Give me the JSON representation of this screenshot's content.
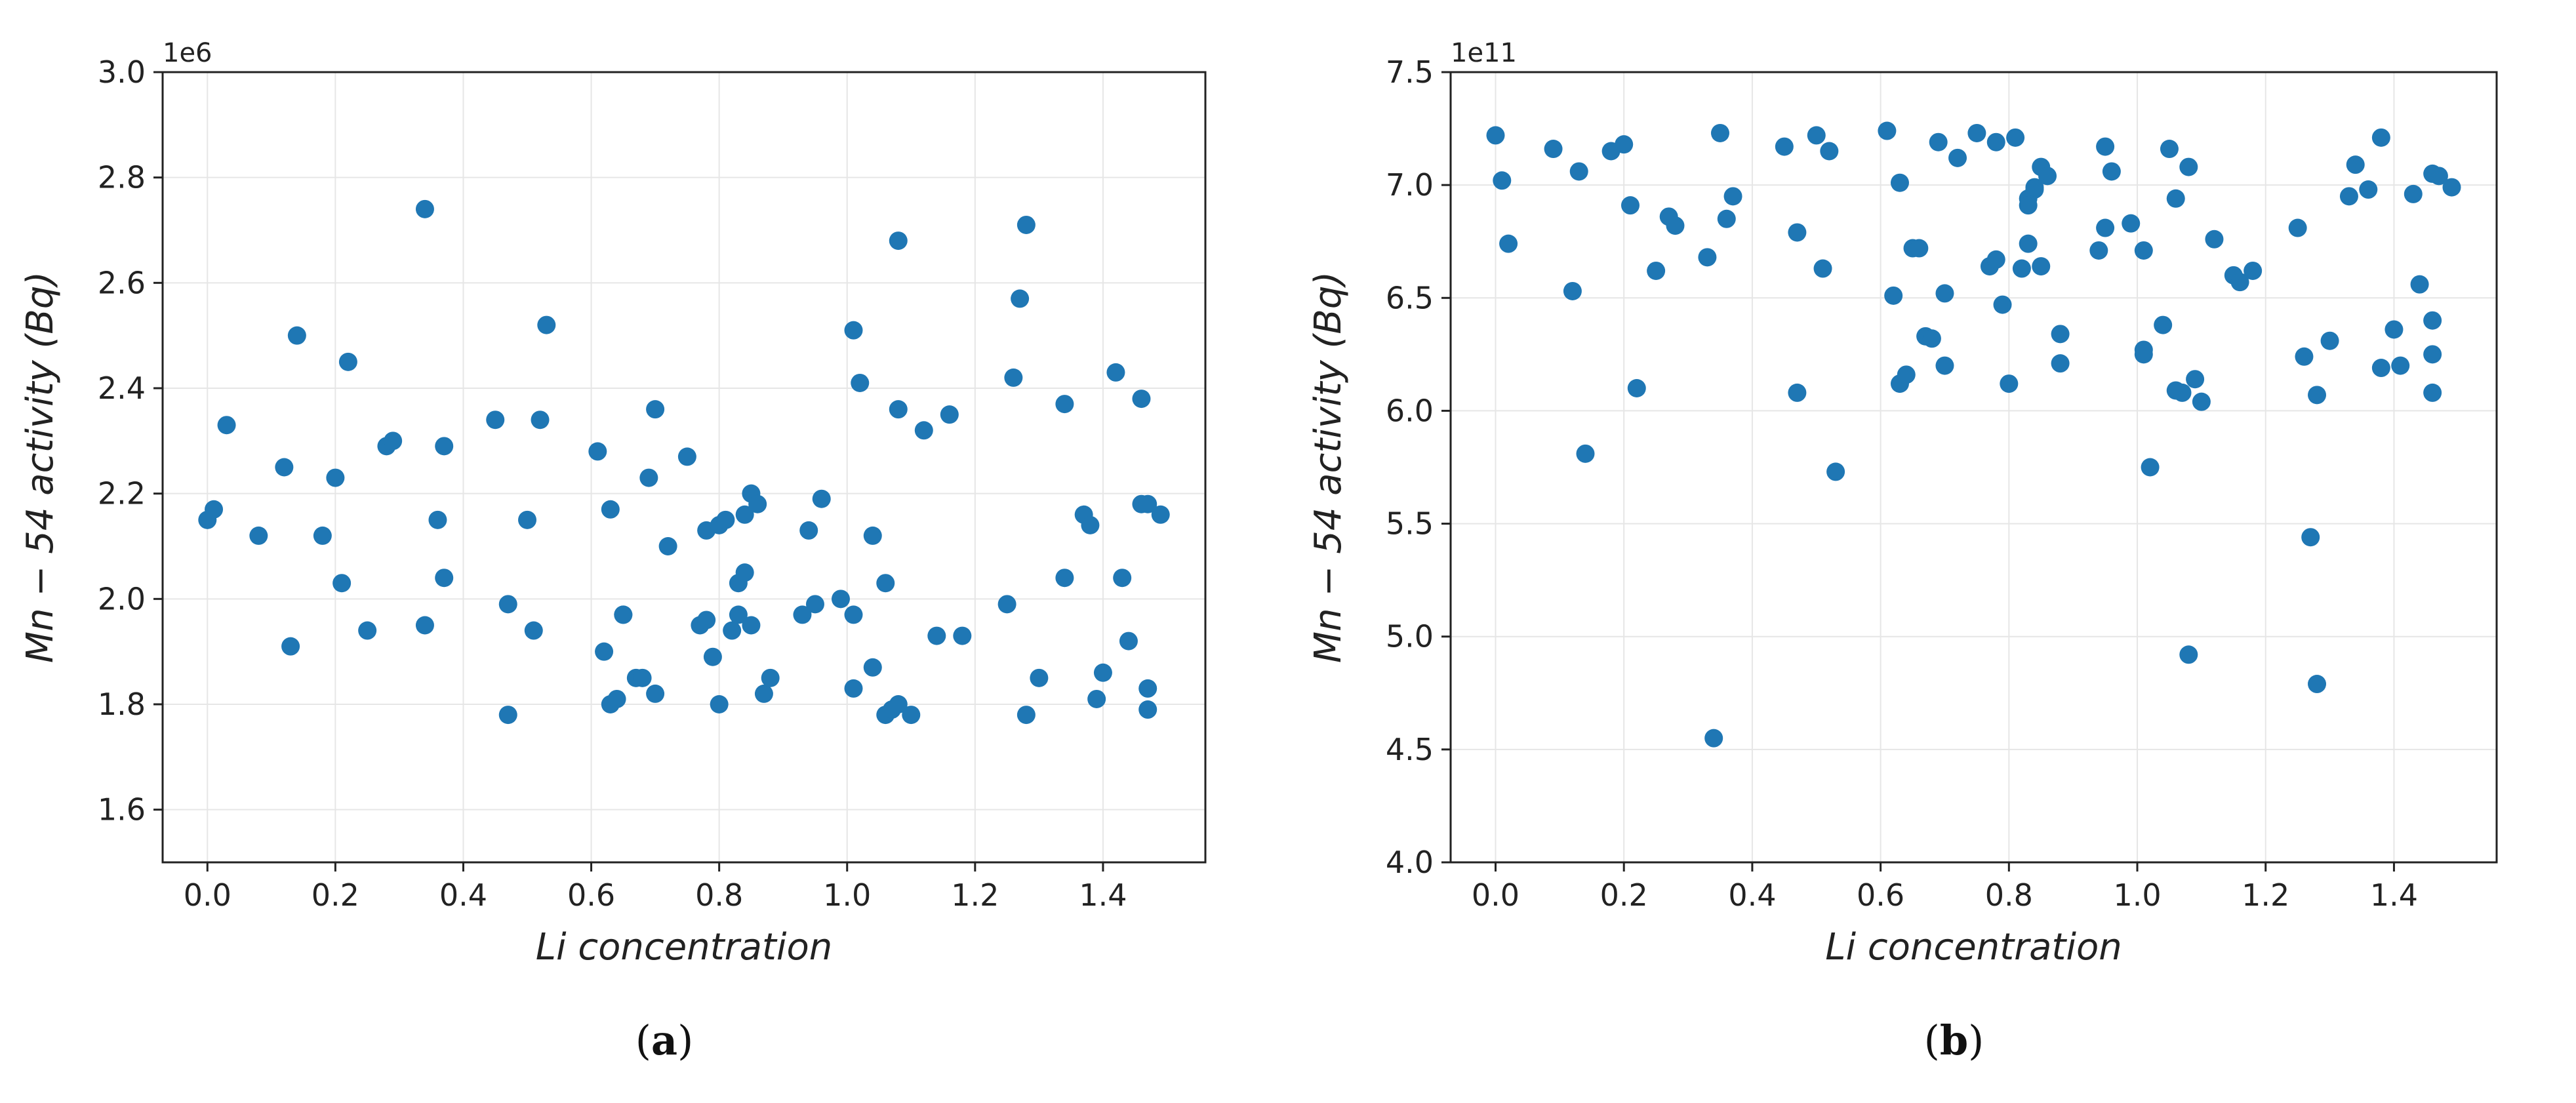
{
  "chart_data": [
    {
      "type": "scatter",
      "ylabel": "Mn − 54 activity (Bq)",
      "xlabel": "Li concentration",
      "offset_text": "1e6",
      "caption_letter": "a",
      "xlim": [
        -0.07,
        1.56
      ],
      "ylim": [
        1.5,
        3.0
      ],
      "xticks": [
        0.0,
        0.2,
        0.4,
        0.6,
        0.8,
        1.0,
        1.2,
        1.4
      ],
      "xtick_labels": [
        "0.0",
        "0.2",
        "0.4",
        "0.6",
        "0.8",
        "1.0",
        "1.2",
        "1.4"
      ],
      "yticks": [
        1.6,
        1.8,
        2.0,
        2.2,
        2.4,
        2.6,
        2.8,
        3.0
      ],
      "ytick_labels": [
        "1.6",
        "1.8",
        "2.0",
        "2.2",
        "2.4",
        "2.6",
        "2.8",
        "3.0"
      ],
      "grid": true,
      "marker_color": "#1f77b4",
      "points": [
        [
          0.0,
          2.15
        ],
        [
          0.01,
          2.17
        ],
        [
          0.03,
          2.33
        ],
        [
          0.08,
          2.12
        ],
        [
          0.12,
          2.25
        ],
        [
          0.13,
          1.91
        ],
        [
          0.14,
          2.5
        ],
        [
          0.18,
          2.12
        ],
        [
          0.2,
          2.23
        ],
        [
          0.21,
          2.03
        ],
        [
          0.22,
          2.45
        ],
        [
          0.25,
          1.94
        ],
        [
          0.28,
          2.29
        ],
        [
          0.29,
          2.3
        ],
        [
          0.34,
          1.95
        ],
        [
          0.34,
          2.74
        ],
        [
          0.36,
          2.15
        ],
        [
          0.37,
          2.29
        ],
        [
          0.37,
          2.04
        ],
        [
          0.45,
          2.34
        ],
        [
          0.47,
          1.99
        ],
        [
          0.47,
          1.78
        ],
        [
          0.5,
          2.15
        ],
        [
          0.51,
          1.94
        ],
        [
          0.52,
          2.34
        ],
        [
          0.53,
          2.52
        ],
        [
          0.61,
          2.28
        ],
        [
          0.62,
          1.9
        ],
        [
          0.63,
          2.17
        ],
        [
          0.63,
          1.8
        ],
        [
          0.64,
          1.81
        ],
        [
          0.65,
          1.97
        ],
        [
          0.65,
          1.97
        ],
        [
          0.67,
          1.85
        ],
        [
          0.68,
          1.85
        ],
        [
          0.69,
          2.23
        ],
        [
          0.7,
          1.82
        ],
        [
          0.7,
          2.36
        ],
        [
          0.72,
          2.1
        ],
        [
          0.75,
          2.27
        ],
        [
          0.77,
          1.95
        ],
        [
          0.78,
          2.13
        ],
        [
          0.78,
          1.96
        ],
        [
          0.79,
          1.89
        ],
        [
          0.8,
          1.8
        ],
        [
          0.8,
          2.14
        ],
        [
          0.81,
          2.15
        ],
        [
          0.82,
          1.94
        ],
        [
          0.83,
          2.03
        ],
        [
          0.83,
          1.97
        ],
        [
          0.84,
          2.05
        ],
        [
          0.84,
          2.16
        ],
        [
          0.85,
          2.2
        ],
        [
          0.85,
          1.95
        ],
        [
          0.86,
          2.18
        ],
        [
          0.87,
          1.82
        ],
        [
          0.88,
          1.85
        ],
        [
          0.93,
          1.97
        ],
        [
          0.94,
          2.13
        ],
        [
          0.95,
          1.99
        ],
        [
          0.96,
          2.19
        ],
        [
          0.99,
          2.0
        ],
        [
          1.01,
          1.97
        ],
        [
          1.01,
          2.51
        ],
        [
          1.01,
          1.83
        ],
        [
          1.02,
          2.41
        ],
        [
          1.04,
          1.87
        ],
        [
          1.04,
          2.12
        ],
        [
          1.06,
          2.03
        ],
        [
          1.06,
          1.78
        ],
        [
          1.07,
          1.79
        ],
        [
          1.08,
          1.8
        ],
        [
          1.08,
          2.36
        ],
        [
          1.08,
          2.68
        ],
        [
          1.1,
          1.78
        ],
        [
          1.12,
          2.32
        ],
        [
          1.14,
          1.93
        ],
        [
          1.16,
          2.35
        ],
        [
          1.18,
          1.93
        ],
        [
          1.25,
          1.99
        ],
        [
          1.26,
          2.42
        ],
        [
          1.27,
          2.57
        ],
        [
          1.28,
          2.71
        ],
        [
          1.28,
          1.78
        ],
        [
          1.3,
          1.85
        ],
        [
          1.34,
          2.04
        ],
        [
          1.34,
          2.37
        ],
        [
          1.37,
          2.16
        ],
        [
          1.38,
          2.14
        ],
        [
          1.39,
          1.81
        ],
        [
          1.4,
          1.86
        ],
        [
          1.42,
          2.43
        ],
        [
          1.43,
          2.04
        ],
        [
          1.44,
          1.92
        ],
        [
          1.46,
          2.38
        ],
        [
          1.46,
          2.18
        ],
        [
          1.47,
          1.83
        ],
        [
          1.47,
          1.79
        ],
        [
          1.47,
          2.18
        ],
        [
          1.49,
          2.16
        ]
      ]
    },
    {
      "type": "scatter",
      "ylabel": "Mn − 54 activity (Bq)",
      "xlabel": "Li concentration",
      "offset_text": "1e11",
      "caption_letter": "b",
      "xlim": [
        -0.07,
        1.56
      ],
      "ylim": [
        4.0,
        7.5
      ],
      "xticks": [
        0.0,
        0.2,
        0.4,
        0.6,
        0.8,
        1.0,
        1.2,
        1.4
      ],
      "xtick_labels": [
        "0.0",
        "0.2",
        "0.4",
        "0.6",
        "0.8",
        "1.0",
        "1.2",
        "1.4"
      ],
      "yticks": [
        4.0,
        4.5,
        5.0,
        5.5,
        6.0,
        6.5,
        7.0,
        7.5
      ],
      "ytick_labels": [
        "4.0",
        "4.5",
        "5.0",
        "5.5",
        "6.0",
        "6.5",
        "7.0",
        "7.5"
      ],
      "grid": true,
      "marker_color": "#1f77b4",
      "points": [
        [
          0.0,
          7.22
        ],
        [
          0.01,
          7.02
        ],
        [
          0.02,
          6.74
        ],
        [
          0.09,
          7.16
        ],
        [
          0.12,
          6.53
        ],
        [
          0.13,
          7.06
        ],
        [
          0.14,
          5.81
        ],
        [
          0.18,
          7.15
        ],
        [
          0.2,
          7.18
        ],
        [
          0.21,
          6.91
        ],
        [
          0.22,
          6.1
        ],
        [
          0.25,
          6.62
        ],
        [
          0.27,
          6.86
        ],
        [
          0.28,
          6.82
        ],
        [
          0.33,
          6.68
        ],
        [
          0.34,
          4.55
        ],
        [
          0.35,
          7.23
        ],
        [
          0.36,
          6.85
        ],
        [
          0.37,
          6.95
        ],
        [
          0.45,
          7.17
        ],
        [
          0.47,
          6.79
        ],
        [
          0.47,
          6.08
        ],
        [
          0.5,
          7.22
        ],
        [
          0.51,
          6.63
        ],
        [
          0.52,
          7.15
        ],
        [
          0.53,
          5.73
        ],
        [
          0.61,
          7.24
        ],
        [
          0.62,
          6.51
        ],
        [
          0.63,
          7.01
        ],
        [
          0.63,
          6.12
        ],
        [
          0.64,
          6.16
        ],
        [
          0.65,
          6.72
        ],
        [
          0.66,
          6.72
        ],
        [
          0.67,
          6.33
        ],
        [
          0.68,
          6.32
        ],
        [
          0.69,
          7.19
        ],
        [
          0.7,
          6.2
        ],
        [
          0.7,
          6.52
        ],
        [
          0.72,
          7.12
        ],
        [
          0.75,
          7.23
        ],
        [
          0.77,
          6.64
        ],
        [
          0.78,
          7.19
        ],
        [
          0.78,
          6.67
        ],
        [
          0.79,
          6.47
        ],
        [
          0.8,
          6.12
        ],
        [
          0.81,
          7.21
        ],
        [
          0.82,
          6.63
        ],
        [
          0.83,
          6.94
        ],
        [
          0.83,
          6.91
        ],
        [
          0.83,
          6.74
        ],
        [
          0.84,
          6.98
        ],
        [
          0.84,
          6.99
        ],
        [
          0.85,
          7.08
        ],
        [
          0.85,
          6.64
        ],
        [
          0.86,
          7.04
        ],
        [
          0.88,
          6.21
        ],
        [
          0.88,
          6.34
        ],
        [
          0.94,
          6.71
        ],
        [
          0.95,
          7.17
        ],
        [
          0.95,
          6.81
        ],
        [
          0.96,
          7.06
        ],
        [
          0.99,
          6.83
        ],
        [
          1.01,
          6.71
        ],
        [
          1.01,
          6.27
        ],
        [
          1.01,
          6.25
        ],
        [
          1.02,
          5.75
        ],
        [
          1.04,
          6.38
        ],
        [
          1.05,
          7.16
        ],
        [
          1.06,
          6.94
        ],
        [
          1.06,
          6.09
        ],
        [
          1.07,
          6.08
        ],
        [
          1.08,
          7.08
        ],
        [
          1.08,
          4.92
        ],
        [
          1.09,
          6.14
        ],
        [
          1.1,
          6.04
        ],
        [
          1.12,
          6.76
        ],
        [
          1.15,
          6.6
        ],
        [
          1.16,
          6.57
        ],
        [
          1.18,
          6.62
        ],
        [
          1.25,
          6.81
        ],
        [
          1.26,
          6.24
        ],
        [
          1.27,
          5.44
        ],
        [
          1.28,
          4.79
        ],
        [
          1.28,
          6.07
        ],
        [
          1.3,
          6.31
        ],
        [
          1.33,
          6.95
        ],
        [
          1.34,
          7.09
        ],
        [
          1.36,
          6.98
        ],
        [
          1.38,
          7.21
        ],
        [
          1.38,
          6.19
        ],
        [
          1.4,
          6.36
        ],
        [
          1.41,
          6.2
        ],
        [
          1.43,
          6.96
        ],
        [
          1.44,
          6.56
        ],
        [
          1.46,
          7.05
        ],
        [
          1.46,
          6.4
        ],
        [
          1.46,
          6.25
        ],
        [
          1.46,
          6.08
        ],
        [
          1.47,
          7.04
        ],
        [
          1.49,
          6.99
        ]
      ]
    }
  ]
}
